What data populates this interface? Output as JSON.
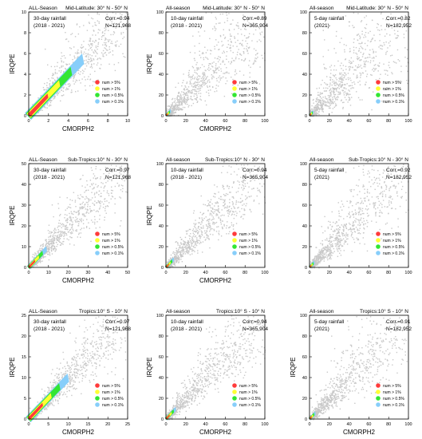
{
  "legend": {
    "entries": [
      {
        "label": "num > 5%",
        "color": "#ff3b3b"
      },
      {
        "label": "num > 1%",
        "color": "#ffff33"
      },
      {
        "label": "num > 0.5%",
        "color": "#33e633"
      },
      {
        "label": "num > 0.1%",
        "color": "#87cefa"
      }
    ]
  },
  "colors": {
    "scatter": "#c8c8c8",
    "axis": "#000000"
  },
  "chart_data": [
    {
      "type": "scatter",
      "top_left": "ALL-Season",
      "top_right": "Mid-Latitude: 30° N - 50° N",
      "period": "30-day rainfall",
      "years": "(2018 - 2021)",
      "corr": "Corr.=0.94",
      "n": "N=121,968",
      "xlabel": "CMORPH2",
      "ylabel": "IRQPE",
      "xlim": [
        0,
        10
      ],
      "ylim": [
        0,
        10
      ],
      "xticks": [
        0,
        2,
        4,
        6,
        8,
        10
      ],
      "yticks": [
        0,
        2,
        4,
        6,
        8,
        10
      ],
      "legend_position": "bottom-right",
      "spread": 0.35,
      "density_core": [
        [
          0.1,
          0.1
        ],
        [
          5.5,
          5.5
        ]
      ]
    },
    {
      "type": "scatter",
      "top_left": "All-season",
      "top_right": "Mid-Latitude: 30° N - 50° N",
      "period": "10-day rainfall",
      "years": "(2018 - 2021)",
      "corr": "Corr.=0.89",
      "n": "N=365,904",
      "xlabel": "CMORPH2",
      "ylabel": "IRQPE",
      "xlim": [
        0,
        100
      ],
      "ylim": [
        0,
        100
      ],
      "xticks": [
        0,
        20,
        40,
        60,
        80,
        100
      ],
      "yticks": [
        0,
        20,
        40,
        60,
        80,
        100
      ],
      "legend_position": "bottom-right",
      "spread": 0.45,
      "density_core": [
        [
          0.5,
          0.5
        ],
        [
          5,
          5
        ]
      ]
    },
    {
      "type": "scatter",
      "top_left": "All-season",
      "top_right": "Mid-Latitude: 30° N - 50° N",
      "period": "5-day rainfall",
      "years": "(2021)",
      "corr": "Corr.=0.82",
      "n": "N=182,952",
      "xlabel": "",
      "ylabel": "",
      "xlim": [
        0,
        100
      ],
      "ylim": [
        0,
        100
      ],
      "xticks": [
        0,
        20,
        40,
        60,
        80,
        100
      ],
      "yticks": [
        0,
        20,
        40,
        60,
        80,
        100
      ],
      "legend_position": "bottom-right",
      "spread": 0.55,
      "density_core": [
        [
          0.5,
          0.5
        ],
        [
          4,
          4
        ]
      ]
    },
    {
      "type": "scatter",
      "top_left": "ALL-Season",
      "top_right": "Sub-Tropics:10° N - 30° N",
      "period": "30-day rainfall",
      "years": "(2018 - 2021)",
      "corr": "Corr.=0.97",
      "n": "N=121,968",
      "xlabel": "CMORPH2",
      "ylabel": "IRQPE",
      "xlim": [
        0,
        50
      ],
      "ylim": [
        0,
        50
      ],
      "xticks": [
        0,
        10,
        20,
        30,
        40,
        50
      ],
      "yticks": [
        0,
        10,
        20,
        30,
        40,
        50
      ],
      "legend_position": "bottom-right",
      "spread": 0.3,
      "density_core": [
        [
          0.2,
          0.2
        ],
        [
          9,
          9
        ]
      ]
    },
    {
      "type": "scatter",
      "top_left": "All-season",
      "top_right": "Sub-Tropics:10° N - 30° N",
      "period": "10-day rainfall",
      "years": "(2018 - 2021)",
      "corr": "Corr.=0.94",
      "n": "N=365,904",
      "xlabel": "CMORPH2",
      "ylabel": "IRQPE",
      "xlim": [
        0,
        100
      ],
      "ylim": [
        0,
        100
      ],
      "xticks": [
        0,
        20,
        40,
        60,
        80,
        100
      ],
      "yticks": [
        0,
        20,
        40,
        60,
        80,
        100
      ],
      "legend_position": "bottom-right",
      "spread": 0.35,
      "density_core": [
        [
          0.5,
          0.5
        ],
        [
          8,
          8
        ]
      ]
    },
    {
      "type": "scatter",
      "top_left": "All-season",
      "top_right": "Sub-Tropics:10° N - 30° N",
      "period": "5-day rainfall",
      "years": "(2021)",
      "corr": "Corr.=0.92",
      "n": "N=182,952",
      "xlabel": "",
      "ylabel": "",
      "xlim": [
        0,
        100
      ],
      "ylim": [
        0,
        100
      ],
      "xticks": [
        0,
        20,
        40,
        60,
        80,
        100
      ],
      "yticks": [
        0,
        20,
        40,
        60,
        80,
        100
      ],
      "legend_position": "bottom-right",
      "spread": 0.4,
      "density_core": [
        [
          0.5,
          0.5
        ],
        [
          5,
          5
        ]
      ]
    },
    {
      "type": "scatter",
      "top_left": "ALL-Season",
      "top_right": "Tropics:10° S - 10° N",
      "period": "30-day rainfall",
      "years": "(2018 - 2021)",
      "corr": "Corr.=0.97",
      "n": "N=121,968",
      "xlabel": "CMORPH2",
      "ylabel": "IRQPE",
      "xlim": [
        0,
        25
      ],
      "ylim": [
        0,
        25
      ],
      "xticks": [
        0,
        5,
        10,
        15,
        20,
        25
      ],
      "yticks": [
        0,
        5,
        10,
        15,
        20,
        25
      ],
      "legend_position": "bottom-right",
      "spread": 0.3,
      "density_core": [
        [
          0.2,
          0.2
        ],
        [
          10,
          10
        ]
      ]
    },
    {
      "type": "scatter",
      "top_left": "All-season",
      "top_right": "Tropics:10° S - 10° N",
      "period": "10-day rainfall",
      "years": "(2018 - 2021)",
      "corr": "Corr.=0.94",
      "n": "N=365,904",
      "xlabel": "CMORPH2",
      "ylabel": "IRQPE",
      "xlim": [
        0,
        100
      ],
      "ylim": [
        0,
        100
      ],
      "xticks": [
        0,
        20,
        40,
        60,
        80,
        100
      ],
      "yticks": [
        0,
        20,
        40,
        60,
        80,
        100
      ],
      "legend_position": "bottom-right",
      "spread": 0.35,
      "density_core": [
        [
          0.5,
          0.5
        ],
        [
          10,
          10
        ]
      ]
    },
    {
      "type": "scatter",
      "top_left": "All-season",
      "top_right": "Tropics:10° S - 10° N",
      "period": "5-day rainfall",
      "years": "(2021)",
      "corr": "Corr.=0.91",
      "n": "N=182,952",
      "xlabel": "CMORPH2",
      "ylabel": "IRQPE",
      "xlim": [
        0,
        100
      ],
      "ylim": [
        0,
        100
      ],
      "xticks": [
        0,
        20,
        40,
        60,
        80,
        100
      ],
      "yticks": [
        0,
        20,
        40,
        60,
        80,
        100
      ],
      "legend_position": "bottom-right",
      "spread": 0.4,
      "density_core": [
        [
          0.5,
          0.5
        ],
        [
          6,
          6
        ]
      ]
    }
  ]
}
